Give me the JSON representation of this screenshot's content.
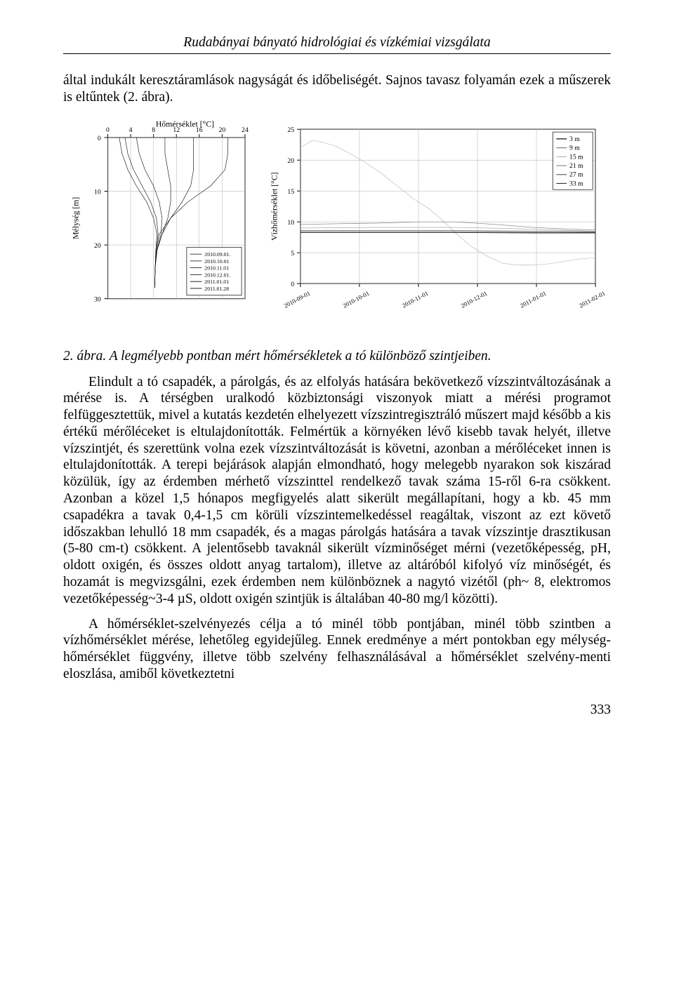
{
  "header": {
    "running_title": "Rudabányai bányató hidrológiai és vízkémiai vizsgálata"
  },
  "intro": {
    "text": "által indukált keresztáramlások nagyságát és időbeliségét. Sajnos tavasz folyamán ezek a műszerek is eltűntek (2. ábra)."
  },
  "fig2_left": {
    "type": "line",
    "title": "Hőmérséklet [°C]",
    "xlabel": "",
    "ylabel": "Mélység [m]",
    "xlim": [
      0,
      24
    ],
    "xtick_step": 4,
    "ylim": [
      30,
      0
    ],
    "ytick_step": 10,
    "axis_fontsize": 10,
    "label_fontsize": 12,
    "background_color": "#ffffff",
    "grid_color": "#adadad",
    "line_color": "#000000",
    "line_width": 0.6,
    "legend_title": "",
    "dates": [
      "2010.09.01.",
      "2010.10.01",
      "2010.11.01",
      "2010.12.01.",
      "2011.01.01",
      "2011.01.28"
    ],
    "legend_fontsize": 8,
    "series": {
      "2010-09-01": {
        "x": [
          21,
          21,
          20.5,
          18,
          14,
          11,
          9,
          8.5,
          8.3,
          8.2
        ],
        "y": [
          0,
          3,
          6,
          9,
          12,
          15,
          18,
          21,
          24,
          28
        ]
      },
      "2010-10-01": {
        "x": [
          15,
          15,
          15,
          14.5,
          13,
          11,
          9.5,
          8.6,
          8.3,
          8.2
        ],
        "y": [
          0,
          3,
          6,
          9,
          12,
          15,
          18,
          21,
          24,
          28
        ]
      },
      "2010-11-01": {
        "x": [
          10,
          10,
          10.5,
          11,
          11,
          10.5,
          9.5,
          8.6,
          8.3,
          8.2
        ],
        "y": [
          0,
          3,
          6,
          9,
          12,
          15,
          18,
          21,
          24,
          28
        ]
      },
      "2010-12-01": {
        "x": [
          5,
          5.5,
          6.5,
          8,
          9,
          9.5,
          9.3,
          8.6,
          8.3,
          8.2
        ],
        "y": [
          0,
          3,
          6,
          9,
          12,
          15,
          18,
          21,
          24,
          28
        ]
      },
      "2011-01-01": {
        "x": [
          3,
          3.5,
          4.5,
          6,
          7.5,
          8.5,
          8.8,
          8.5,
          8.3,
          8.2
        ],
        "y": [
          0,
          3,
          6,
          9,
          12,
          15,
          18,
          21,
          24,
          28
        ]
      },
      "2011-01-28": {
        "x": [
          2,
          2.5,
          3.5,
          5,
          6.8,
          8,
          8.6,
          8.4,
          8.3,
          8.2
        ],
        "y": [
          0,
          3,
          6,
          9,
          12,
          15,
          18,
          21,
          24,
          28
        ]
      }
    }
  },
  "fig2_right": {
    "type": "line",
    "ylabel": "Vízhőmérséklet [°C]",
    "ylim": [
      0,
      25
    ],
    "ytick_step": 5,
    "xlabels": [
      "2010-09-01",
      "2010-10-01",
      "2010-11-01",
      "2010-12-01",
      "2011-01-01",
      "2011-02-01"
    ],
    "axis_fontsize": 10,
    "label_fontsize": 12,
    "tick_fontsize": 9,
    "background_color": "#ffffff",
    "grid_color": "#adadad",
    "line_width": 0.7,
    "legend": [
      {
        "label": "3 m",
        "color": "#000000"
      },
      {
        "label": "9 m",
        "color": "#7a7a7a"
      },
      {
        "label": "15 m",
        "color": "#b5b5b5"
      },
      {
        "label": "21 m",
        "color": "#8a8a8a"
      },
      {
        "label": "27 m",
        "color": "#5c5c5c"
      },
      {
        "label": "33 m",
        "color": "#3a3a3a"
      }
    ],
    "legend_fontsize": 10,
    "series": {
      "3m": {
        "color": "#bcbcbc",
        "pts": [
          [
            0,
            22.0
          ],
          [
            6,
            23.2
          ],
          [
            10,
            23.0
          ],
          [
            18,
            22.3
          ],
          [
            26,
            21.0
          ],
          [
            34,
            19.5
          ],
          [
            42,
            17.8
          ],
          [
            50,
            15.8
          ],
          [
            58,
            13.8
          ],
          [
            66,
            12.2
          ],
          [
            74,
            10.0
          ],
          [
            80,
            8.2
          ],
          [
            88,
            6.0
          ],
          [
            96,
            4.5
          ],
          [
            104,
            3.3
          ],
          [
            112,
            3.0
          ],
          [
            120,
            3.0
          ],
          [
            128,
            3.2
          ],
          [
            136,
            3.6
          ],
          [
            144,
            4.0
          ],
          [
            152,
            4.2
          ]
        ]
      },
      "9m": {
        "color": "#7a7a7a",
        "pts": [
          [
            0,
            9.6
          ],
          [
            20,
            9.7
          ],
          [
            40,
            9.8
          ],
          [
            60,
            10.0
          ],
          [
            80,
            10.0
          ],
          [
            100,
            9.6
          ],
          [
            120,
            9.1
          ],
          [
            140,
            8.8
          ],
          [
            152,
            8.7
          ]
        ]
      },
      "15m": {
        "color": "#9e9e9e",
        "pts": [
          [
            0,
            9.0
          ],
          [
            40,
            9.1
          ],
          [
            80,
            9.1
          ],
          [
            110,
            8.9
          ],
          [
            140,
            8.6
          ],
          [
            152,
            8.5
          ]
        ]
      },
      "21m": {
        "color": "#5c5c5c",
        "pts": [
          [
            0,
            8.6
          ],
          [
            40,
            8.6
          ],
          [
            80,
            8.6
          ],
          [
            120,
            8.5
          ],
          [
            152,
            8.4
          ]
        ]
      },
      "27m": {
        "color": "#3a3a3a",
        "pts": [
          [
            0,
            8.4
          ],
          [
            40,
            8.4
          ],
          [
            80,
            8.4
          ],
          [
            120,
            8.3
          ],
          [
            152,
            8.3
          ]
        ]
      },
      "33m": {
        "color": "#000000",
        "pts": [
          [
            0,
            8.25
          ],
          [
            40,
            8.25
          ],
          [
            80,
            8.25
          ],
          [
            120,
            8.2
          ],
          [
            152,
            8.2
          ]
        ]
      }
    },
    "xrange": 152
  },
  "fig2_caption": {
    "label": "2. ábra.",
    "text": " A legmélyebb pontban mért hőmérsékletek a tó különböző szintjeiben."
  },
  "body": {
    "p1": "Elindult a tó csapadék, a párolgás, és az elfolyás hatására bekövetkező vízszintváltozásának a mérése is. A térségben uralkodó közbiztonsági viszonyok miatt a mérési programot felfüggesztettük, mivel a kutatás kezdetén elhelyezett vízszintregisztráló műszert majd később a kis értékű mérőléceket is eltulajdonították. Felmértük a környéken lévő kisebb tavak helyét, illetve vízszintjét, és szerettünk volna ezek vízszintváltozását is követni, azonban a mérőléceket innen is eltulajdonították. A terepi bejárások alapján elmondható, hogy melegebb nyarakon sok kiszárad közülük, így az érdemben mérhető vízszinttel rendelkező tavak száma 15-ről 6-ra csökkent. Azonban a közel 1,5 hónapos megfigyelés alatt sikerült megállapítani, hogy a kb. 45 mm csapadékra a tavak 0,4-1,5 cm körüli vízszintemelkedéssel reagáltak, viszont az ezt követő időszakban lehulló 18 mm csapadék, és a magas párolgás hatására a tavak vízszintje drasztikusan (5-80 cm-t) csökkent.  A jelentősebb tavaknál sikerült vízminőséget mérni (vezetőképesség, pH, oldott oxigén, és összes oldott anyag tartalom), illetve az altáróból kifolyó víz minőségét, és hozamát is megvizsgálni, ezek érdemben nem különböznek a nagytó vizétől (ph~ 8, elektromos vezetőképesség~3-4 µS, oldott oxigén szintjük is általában 40-80 mg/l közötti).",
    "p2": "A hőmérséklet-szelvényezés célja a tó minél több pontjában, minél több szintben a vízhőmérséklet mérése, lehetőleg egyidejűleg. Ennek eredménye a mért pontokban egy mélység-hőmérséklet függvény, illetve több szelvény felhasználásával a hőmérséklet szelvény-menti eloszlása, amiből következtetni"
  },
  "page_number": "333"
}
